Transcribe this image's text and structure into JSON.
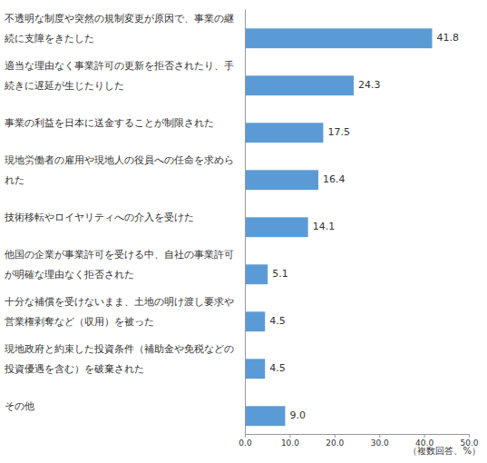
{
  "chart_data": {
    "type": "bar",
    "orientation": "horizontal",
    "categories": [
      "不透明な制度や突然の規制変更が原因で、事業の継続に支障をきたした",
      "適当な理由なく事業許可の更新を拒否されたり、手続きに遅延が生じたりした",
      "事業の利益を日本に送金することが制限された",
      "現地労働者の雇用や現地人の役員への任命を求められた",
      "技術移転やロイヤリティへの介入を受けた",
      "他国の企業が事業許可を受ける中、自社の事業許可が明確な理由なく拒否された",
      "十分な補償を受けないまま、土地の明け渡し要求や営業権剥奪など（収用）を被った",
      "現地政府と約束した投資条件（補助金や免税などの投資優遇を含む）を破棄された",
      "その他"
    ],
    "values": [
      41.8,
      24.3,
      17.5,
      16.4,
      14.1,
      5.1,
      4.5,
      4.5,
      9.0
    ],
    "value_labels": [
      "41.8",
      "24.3",
      "17.5",
      "16.4",
      "14.1",
      "5.1",
      "4.5",
      "4.5",
      "9.0"
    ],
    "data_labels": true,
    "color": "#5b9bd5",
    "x_label": "（複数回答、%）",
    "xlim": [
      0,
      50
    ],
    "xticks": [
      {
        "value": 0,
        "label": "0.0"
      },
      {
        "value": 10,
        "label": "10.0"
      },
      {
        "value": 20,
        "label": "20.0"
      },
      {
        "value": 30,
        "label": "30.0"
      },
      {
        "value": 40,
        "label": "40.0"
      },
      {
        "value": 50,
        "label": "50.0"
      }
    ],
    "grid": false
  }
}
